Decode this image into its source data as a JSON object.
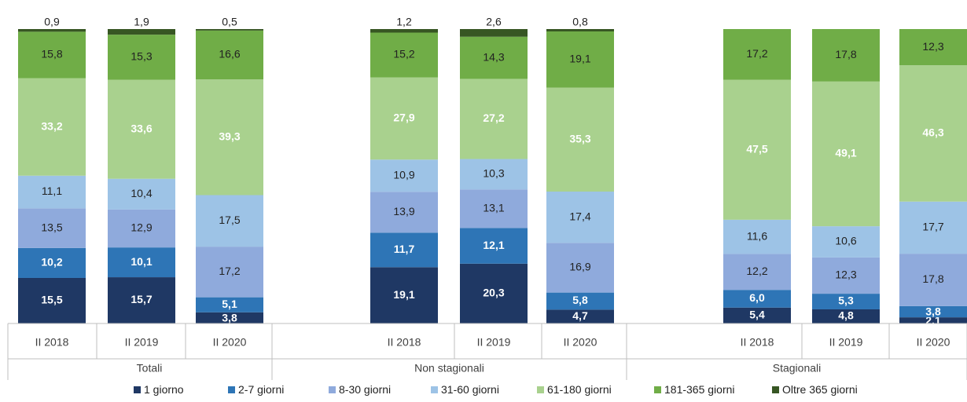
{
  "chart_data": {
    "type": "bar",
    "stacked": true,
    "normalized": true,
    "groups": [
      {
        "name": "Totali",
        "categories": [
          "II 2018",
          "II 2019",
          "II 2020"
        ]
      },
      {
        "name": "Non stagionali",
        "categories": [
          "II 2018",
          "II 2019",
          "II 2020"
        ]
      },
      {
        "name": "Stagionali",
        "categories": [
          "II 2018",
          "II 2019",
          "II 2020"
        ]
      }
    ],
    "series": [
      {
        "name": "1 giorno",
        "color": "#1f3864",
        "values": [
          [
            15.5,
            15.7,
            3.8
          ],
          [
            19.1,
            20.3,
            4.7
          ],
          [
            5.4,
            4.8,
            2.1
          ]
        ],
        "labels": [
          [
            "15,5",
            "15,7",
            "3,8"
          ],
          [
            "19,1",
            "20,3",
            "4,7"
          ],
          [
            "5,4",
            "4,8",
            "2,1"
          ]
        ]
      },
      {
        "name": "2-7 giorni",
        "color": "#2e75b6",
        "values": [
          [
            10.2,
            10.1,
            5.1
          ],
          [
            11.7,
            12.1,
            5.8
          ],
          [
            6.0,
            5.3,
            3.8
          ]
        ],
        "labels": [
          [
            "10,2",
            "10,1",
            "5,1"
          ],
          [
            "11,7",
            "12,1",
            "5,8"
          ],
          [
            "6,0",
            "5,3",
            "3,8"
          ]
        ]
      },
      {
        "name": "8-30 giorni",
        "color": "#8faadc",
        "values": [
          [
            13.5,
            12.9,
            17.2
          ],
          [
            13.9,
            13.1,
            16.9
          ],
          [
            12.2,
            12.3,
            17.8
          ]
        ],
        "labels": [
          [
            "13,5",
            "12,9",
            "17,2"
          ],
          [
            "13,9",
            "13,1",
            "16,9"
          ],
          [
            "12,2",
            "12,3",
            "17,8"
          ]
        ]
      },
      {
        "name": "31-60 giorni",
        "color": "#9dc3e6",
        "values": [
          [
            11.1,
            10.4,
            17.5
          ],
          [
            10.9,
            10.3,
            17.4
          ],
          [
            11.6,
            10.6,
            17.7
          ]
        ],
        "labels": [
          [
            "11,1",
            "10,4",
            "17,5"
          ],
          [
            "10,9",
            "10,3",
            "17,4"
          ],
          [
            "11,6",
            "10,6",
            "17,7"
          ]
        ]
      },
      {
        "name": "61-180 giorni",
        "color": "#a9d18e",
        "values": [
          [
            33.2,
            33.6,
            39.3
          ],
          [
            27.9,
            27.2,
            35.3
          ],
          [
            47.5,
            49.1,
            46.3
          ]
        ],
        "labels": [
          [
            "33,2",
            "33,6",
            "39,3"
          ],
          [
            "27,9",
            "27,2",
            "35,3"
          ],
          [
            "47,5",
            "49,1",
            "46,3"
          ]
        ]
      },
      {
        "name": "181-365 giorni",
        "color": "#70ad47",
        "values": [
          [
            15.8,
            15.3,
            16.6
          ],
          [
            15.2,
            14.3,
            19.1
          ],
          [
            17.2,
            17.8,
            12.3
          ]
        ],
        "labels": [
          [
            "15,8",
            "15,3",
            "16,6"
          ],
          [
            "15,2",
            "14,3",
            "19,1"
          ],
          [
            "17,2",
            "17,8",
            "12,3"
          ]
        ]
      },
      {
        "name": "Oltre 365 giorni",
        "color": "#375623",
        "values": [
          [
            0.9,
            1.9,
            0.5
          ],
          [
            1.2,
            2.6,
            0.8
          ],
          [
            0.0,
            0.0,
            0.0
          ]
        ],
        "labels": [
          [
            "0,9",
            "1,9",
            "0,5"
          ],
          [
            "1,2",
            "2,6",
            "0,8"
          ],
          [
            "",
            "",
            ""
          ]
        ]
      }
    ],
    "ylim": [
      0,
      100
    ],
    "legend_position": "bottom",
    "grid": false
  }
}
